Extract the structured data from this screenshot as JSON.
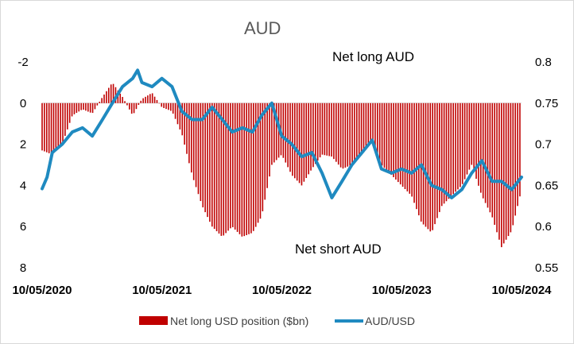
{
  "chart_data": {
    "type": "bar+line",
    "title": "AUD",
    "annotations": {
      "top": "Net long AUD",
      "bottom": "Net short AUD"
    },
    "x_start": "2020-05-10",
    "x_end": "2024-05-10",
    "x_tick_labels": [
      "10/05/2020",
      "10/05/2021",
      "10/05/2022",
      "10/05/2023",
      "10/05/2024"
    ],
    "left_axis": {
      "range": [
        -2,
        8
      ],
      "reversed": true,
      "ticks": [
        "-2",
        "0",
        "2",
        "4",
        "6",
        "8"
      ]
    },
    "right_axis": {
      "range": [
        0.55,
        0.8
      ],
      "ticks": [
        "0.8",
        "0.75",
        "0.7",
        "0.65",
        "0.6",
        "0.55"
      ]
    },
    "legend": {
      "placement": "bottom",
      "entries": [
        "Net long USD position ($bn)",
        "AUD/USD"
      ]
    },
    "colors": {
      "bars": "#c00000",
      "line": "#1f8ac0"
    },
    "series": [
      {
        "name": "Net long USD position ($bn)",
        "kind": "bar",
        "axis": "left",
        "points": [
          [
            "2020-05-10",
            2.3
          ],
          [
            "2020-06-10",
            2.5
          ],
          [
            "2020-07-10",
            2.0
          ],
          [
            "2020-08-10",
            0.6
          ],
          [
            "2020-09-10",
            0.3
          ],
          [
            "2020-10-10",
            0.5
          ],
          [
            "2020-11-10",
            -0.3
          ],
          [
            "2020-12-10",
            -1.0
          ],
          [
            "2021-01-10",
            -0.3
          ],
          [
            "2021-02-10",
            0.6
          ],
          [
            "2021-03-10",
            -0.2
          ],
          [
            "2021-04-10",
            -0.5
          ],
          [
            "2021-05-10",
            0.2
          ],
          [
            "2021-06-10",
            0.4
          ],
          [
            "2021-07-10",
            1.5
          ],
          [
            "2021-08-10",
            3.5
          ],
          [
            "2021-09-10",
            5.0
          ],
          [
            "2021-10-10",
            6.0
          ],
          [
            "2021-11-10",
            6.5
          ],
          [
            "2021-12-10",
            6.0
          ],
          [
            "2022-01-10",
            6.5
          ],
          [
            "2022-02-10",
            6.3
          ],
          [
            "2022-03-10",
            5.5
          ],
          [
            "2022-04-10",
            3.0
          ],
          [
            "2022-05-10",
            2.5
          ],
          [
            "2022-06-10",
            3.5
          ],
          [
            "2022-07-10",
            4.0
          ],
          [
            "2022-08-10",
            3.2
          ],
          [
            "2022-09-10",
            2.5
          ],
          [
            "2022-10-10",
            2.6
          ],
          [
            "2022-11-10",
            3.2
          ],
          [
            "2022-12-10",
            3.0
          ],
          [
            "2023-01-10",
            2.5
          ],
          [
            "2023-02-10",
            1.8
          ],
          [
            "2023-03-10",
            3.0
          ],
          [
            "2023-04-10",
            3.5
          ],
          [
            "2023-05-10",
            4.0
          ],
          [
            "2023-06-10",
            4.5
          ],
          [
            "2023-07-10",
            5.8
          ],
          [
            "2023-08-10",
            6.3
          ],
          [
            "2023-09-10",
            5.0
          ],
          [
            "2023-10-10",
            4.5
          ],
          [
            "2023-11-10",
            4.0
          ],
          [
            "2023-12-10",
            3.0
          ],
          [
            "2024-01-10",
            4.5
          ],
          [
            "2024-02-10",
            5.5
          ],
          [
            "2024-03-10",
            7.0
          ],
          [
            "2024-04-10",
            6.2
          ],
          [
            "2024-05-10",
            4.2
          ]
        ]
      },
      {
        "name": "AUD/USD",
        "kind": "line",
        "axis": "right",
        "points": [
          [
            "2020-05-10",
            0.646
          ],
          [
            "2020-05-25",
            0.66
          ],
          [
            "2020-06-10",
            0.69
          ],
          [
            "2020-07-10",
            0.7
          ],
          [
            "2020-08-10",
            0.715
          ],
          [
            "2020-09-10",
            0.72
          ],
          [
            "2020-10-10",
            0.71
          ],
          [
            "2020-11-10",
            0.73
          ],
          [
            "2020-12-10",
            0.75
          ],
          [
            "2021-01-10",
            0.77
          ],
          [
            "2021-02-10",
            0.78
          ],
          [
            "2021-02-25",
            0.79
          ],
          [
            "2021-03-10",
            0.775
          ],
          [
            "2021-04-10",
            0.77
          ],
          [
            "2021-05-10",
            0.78
          ],
          [
            "2021-06-10",
            0.77
          ],
          [
            "2021-07-10",
            0.74
          ],
          [
            "2021-08-10",
            0.73
          ],
          [
            "2021-09-10",
            0.73
          ],
          [
            "2021-10-10",
            0.745
          ],
          [
            "2021-11-10",
            0.73
          ],
          [
            "2021-12-10",
            0.715
          ],
          [
            "2022-01-10",
            0.72
          ],
          [
            "2022-02-10",
            0.715
          ],
          [
            "2022-03-10",
            0.735
          ],
          [
            "2022-04-10",
            0.75
          ],
          [
            "2022-05-10",
            0.71
          ],
          [
            "2022-06-10",
            0.7
          ],
          [
            "2022-07-10",
            0.685
          ],
          [
            "2022-08-10",
            0.69
          ],
          [
            "2022-09-10",
            0.665
          ],
          [
            "2022-10-10",
            0.635
          ],
          [
            "2022-11-10",
            0.655
          ],
          [
            "2022-12-10",
            0.675
          ],
          [
            "2023-01-10",
            0.69
          ],
          [
            "2023-02-10",
            0.705
          ],
          [
            "2023-03-10",
            0.67
          ],
          [
            "2023-04-10",
            0.665
          ],
          [
            "2023-05-10",
            0.67
          ],
          [
            "2023-06-10",
            0.665
          ],
          [
            "2023-07-10",
            0.675
          ],
          [
            "2023-08-10",
            0.65
          ],
          [
            "2023-09-10",
            0.645
          ],
          [
            "2023-10-10",
            0.635
          ],
          [
            "2023-11-10",
            0.645
          ],
          [
            "2023-12-10",
            0.665
          ],
          [
            "2024-01-10",
            0.68
          ],
          [
            "2024-02-10",
            0.655
          ],
          [
            "2024-03-10",
            0.655
          ],
          [
            "2024-04-10",
            0.645
          ],
          [
            "2024-05-10",
            0.66
          ]
        ]
      }
    ]
  }
}
